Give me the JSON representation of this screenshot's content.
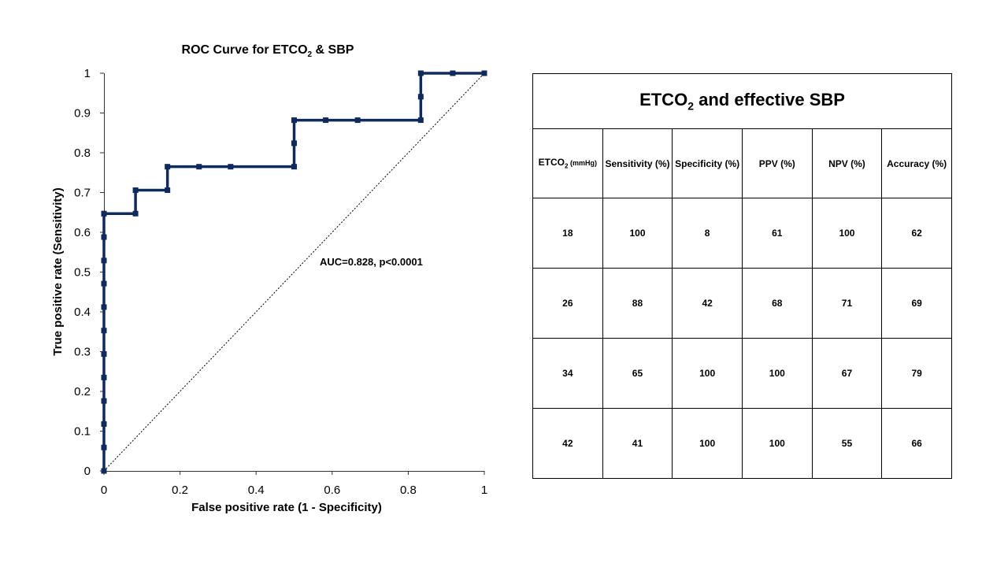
{
  "chart_data": {
    "type": "line",
    "title": "ROC Curve for ETCO",
    "title_sub": "2",
    "title_suffix": " & SBP",
    "xlabel": "False positive rate (1 - Specificity)",
    "ylabel": "True positive rate (Sensitivity)",
    "xlim": [
      0,
      1
    ],
    "ylim": [
      0,
      1
    ],
    "x_ticks": [
      "0",
      "0.2",
      "0.4",
      "0.6",
      "0.8",
      "1"
    ],
    "y_ticks": [
      "0",
      "0.1",
      "0.2",
      "0.3",
      "0.4",
      "0.5",
      "0.6",
      "0.7",
      "0.8",
      "0.9",
      "1"
    ],
    "annotation": "AUC=0.828,  p<0.0001",
    "series": [
      {
        "color": "#0f2a5c",
        "x": [
          0,
          0,
          0,
          0,
          0,
          0,
          0,
          0,
          0,
          0,
          0,
          0,
          0,
          0.083,
          0.083,
          0.167,
          0.167,
          0.25,
          0.333,
          0.5,
          0.5,
          0.5,
          0.583,
          0.667,
          0.833,
          0.833,
          0.833,
          0.917,
          1
        ],
        "y": [
          0,
          0.059,
          0.118,
          0.176,
          0.235,
          0.294,
          0.353,
          0.412,
          0.471,
          0.529,
          0.588,
          0.647,
          0.647,
          0.647,
          0.706,
          0.706,
          0.765,
          0.765,
          0.765,
          0.765,
          0.824,
          0.882,
          0.882,
          0.882,
          0.882,
          0.941,
          1,
          1,
          1
        ]
      }
    ],
    "reference_line": {
      "x": [
        0,
        1
      ],
      "y": [
        0,
        1
      ],
      "style": "dotted"
    },
    "grid": false
  },
  "table": {
    "title": "ETCO",
    "title_sub": "2",
    "title_suffix": " and effective SBP",
    "header_first": "ETCO",
    "header_first_sub": "2",
    "header_first_unit": " (mmHg)",
    "headers": [
      "Sensitivity (%)",
      "Specificity (%)",
      "PPV (%)",
      "NPV (%)",
      "Accuracy (%)"
    ],
    "rows": [
      [
        "18",
        "100",
        "8",
        "61",
        "100",
        "62"
      ],
      [
        "26",
        "88",
        "42",
        "68",
        "71",
        "69"
      ],
      [
        "34",
        "65",
        "100",
        "100",
        "67",
        "79"
      ],
      [
        "42",
        "41",
        "100",
        "100",
        "55",
        "66"
      ]
    ]
  }
}
